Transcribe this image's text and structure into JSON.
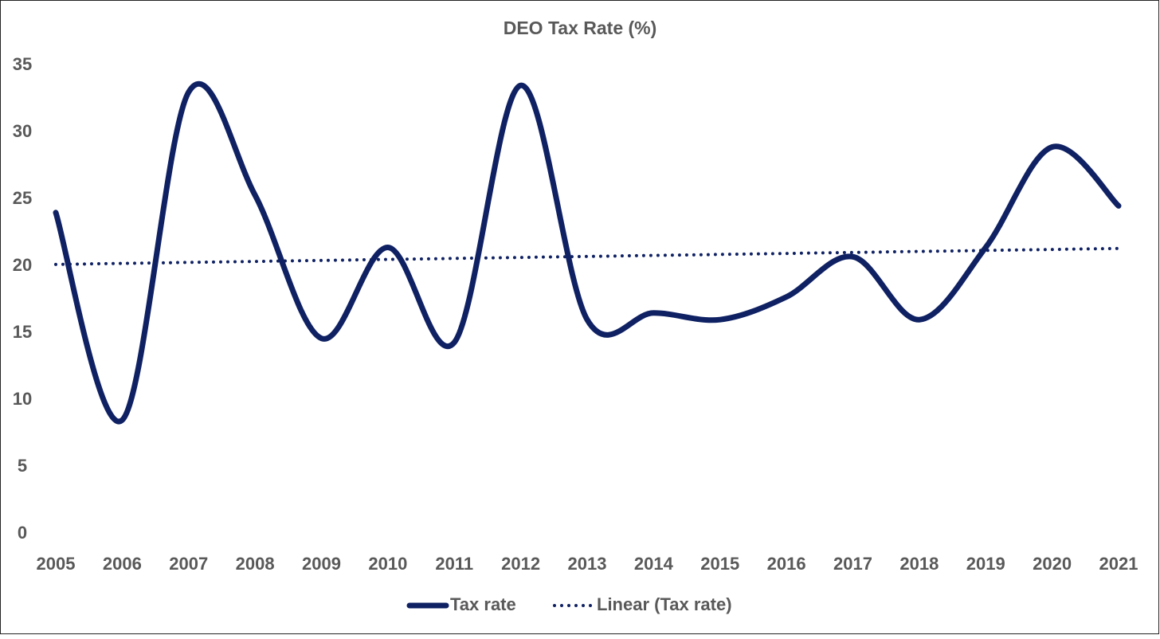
{
  "chart_data": {
    "type": "line",
    "title": "DEO Tax Rate (%)",
    "categories": [
      "2005",
      "2006",
      "2007",
      "2008",
      "2009",
      "2010",
      "2011",
      "2012",
      "2013",
      "2014",
      "2015",
      "2016",
      "2017",
      "2018",
      "2019",
      "2020",
      "2021"
    ],
    "series": [
      {
        "name": "Tax rate",
        "color": "#0f2163",
        "values": [
          24,
          8.5,
          33,
          25.3,
          14.6,
          21.4,
          14.3,
          33.5,
          16,
          16.5,
          16,
          17.7,
          20.7,
          16,
          21.4,
          28.9,
          24.5
        ]
      }
    ],
    "trendline": {
      "name": "Linear (Tax rate)",
      "type": "linear",
      "color": "#0f2163",
      "style": "dotted"
    },
    "smooth": true,
    "ylim": [
      0,
      35
    ],
    "yticks": [
      0,
      5,
      10,
      15,
      20,
      25,
      30,
      35
    ],
    "grid": false
  }
}
